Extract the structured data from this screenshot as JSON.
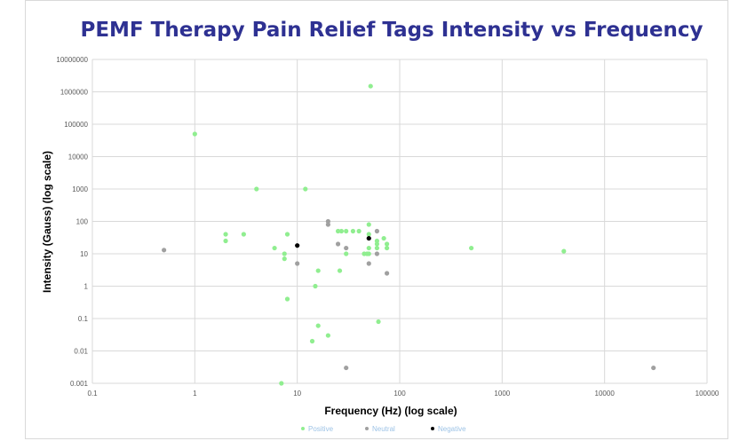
{
  "chart_data": {
    "type": "scatter",
    "title": "PEMF Therapy Pain Relief Tags Intensity vs Frequency",
    "xlabel": "Frequency (Hz) (log scale)",
    "ylabel": "Intensity (Gauss)  (log scale)",
    "x_scale": "log",
    "y_scale": "log",
    "xlim": [
      0.1,
      100000
    ],
    "ylim": [
      0.001,
      10000000
    ],
    "x_ticks": [
      "0.1",
      "1",
      "10",
      "100",
      "1000",
      "10000",
      "100000"
    ],
    "y_ticks": [
      "0.001",
      "0.01",
      "0.1",
      "1",
      "10",
      "100",
      "1000",
      "10000",
      "100000",
      "1000000",
      "10000000"
    ],
    "grid": true,
    "legend_position": "bottom",
    "series": [
      {
        "name": "Positive",
        "color": "#90ee90",
        "points": [
          [
            1,
            50000
          ],
          [
            2,
            40
          ],
          [
            2,
            25
          ],
          [
            3,
            40
          ],
          [
            4,
            1000
          ],
          [
            6,
            15
          ],
          [
            7.5,
            10
          ],
          [
            7.5,
            7
          ],
          [
            8,
            40
          ],
          [
            8,
            0.4
          ],
          [
            7,
            0.001
          ],
          [
            12,
            1000
          ],
          [
            15,
            1
          ],
          [
            16,
            3
          ],
          [
            16,
            0.06
          ],
          [
            14,
            0.02
          ],
          [
            20,
            0.03
          ],
          [
            25,
            50
          ],
          [
            27,
            50
          ],
          [
            26,
            3
          ],
          [
            30,
            10
          ],
          [
            30,
            50
          ],
          [
            35,
            50
          ],
          [
            40,
            50
          ],
          [
            45,
            10
          ],
          [
            48,
            10
          ],
          [
            50,
            80
          ],
          [
            50,
            40
          ],
          [
            50,
            15
          ],
          [
            50,
            10
          ],
          [
            52,
            1500000
          ],
          [
            60,
            25
          ],
          [
            60,
            20
          ],
          [
            60,
            15
          ],
          [
            62,
            0.08
          ],
          [
            70,
            30
          ],
          [
            75,
            20
          ],
          [
            75,
            15
          ],
          [
            500,
            15
          ],
          [
            4000,
            12
          ]
        ]
      },
      {
        "name": "Neutral",
        "color": "#a0a0a0",
        "points": [
          [
            0.5,
            13
          ],
          [
            10,
            5
          ],
          [
            20,
            100
          ],
          [
            20,
            80
          ],
          [
            25,
            20
          ],
          [
            30,
            15
          ],
          [
            30,
            0.003
          ],
          [
            50,
            5
          ],
          [
            60,
            50
          ],
          [
            60,
            10
          ],
          [
            75,
            2.5
          ],
          [
            30000,
            0.003
          ]
        ]
      },
      {
        "name": "Negative",
        "color": "#000000",
        "points": [
          [
            10,
            18
          ],
          [
            50,
            30
          ]
        ]
      }
    ]
  }
}
